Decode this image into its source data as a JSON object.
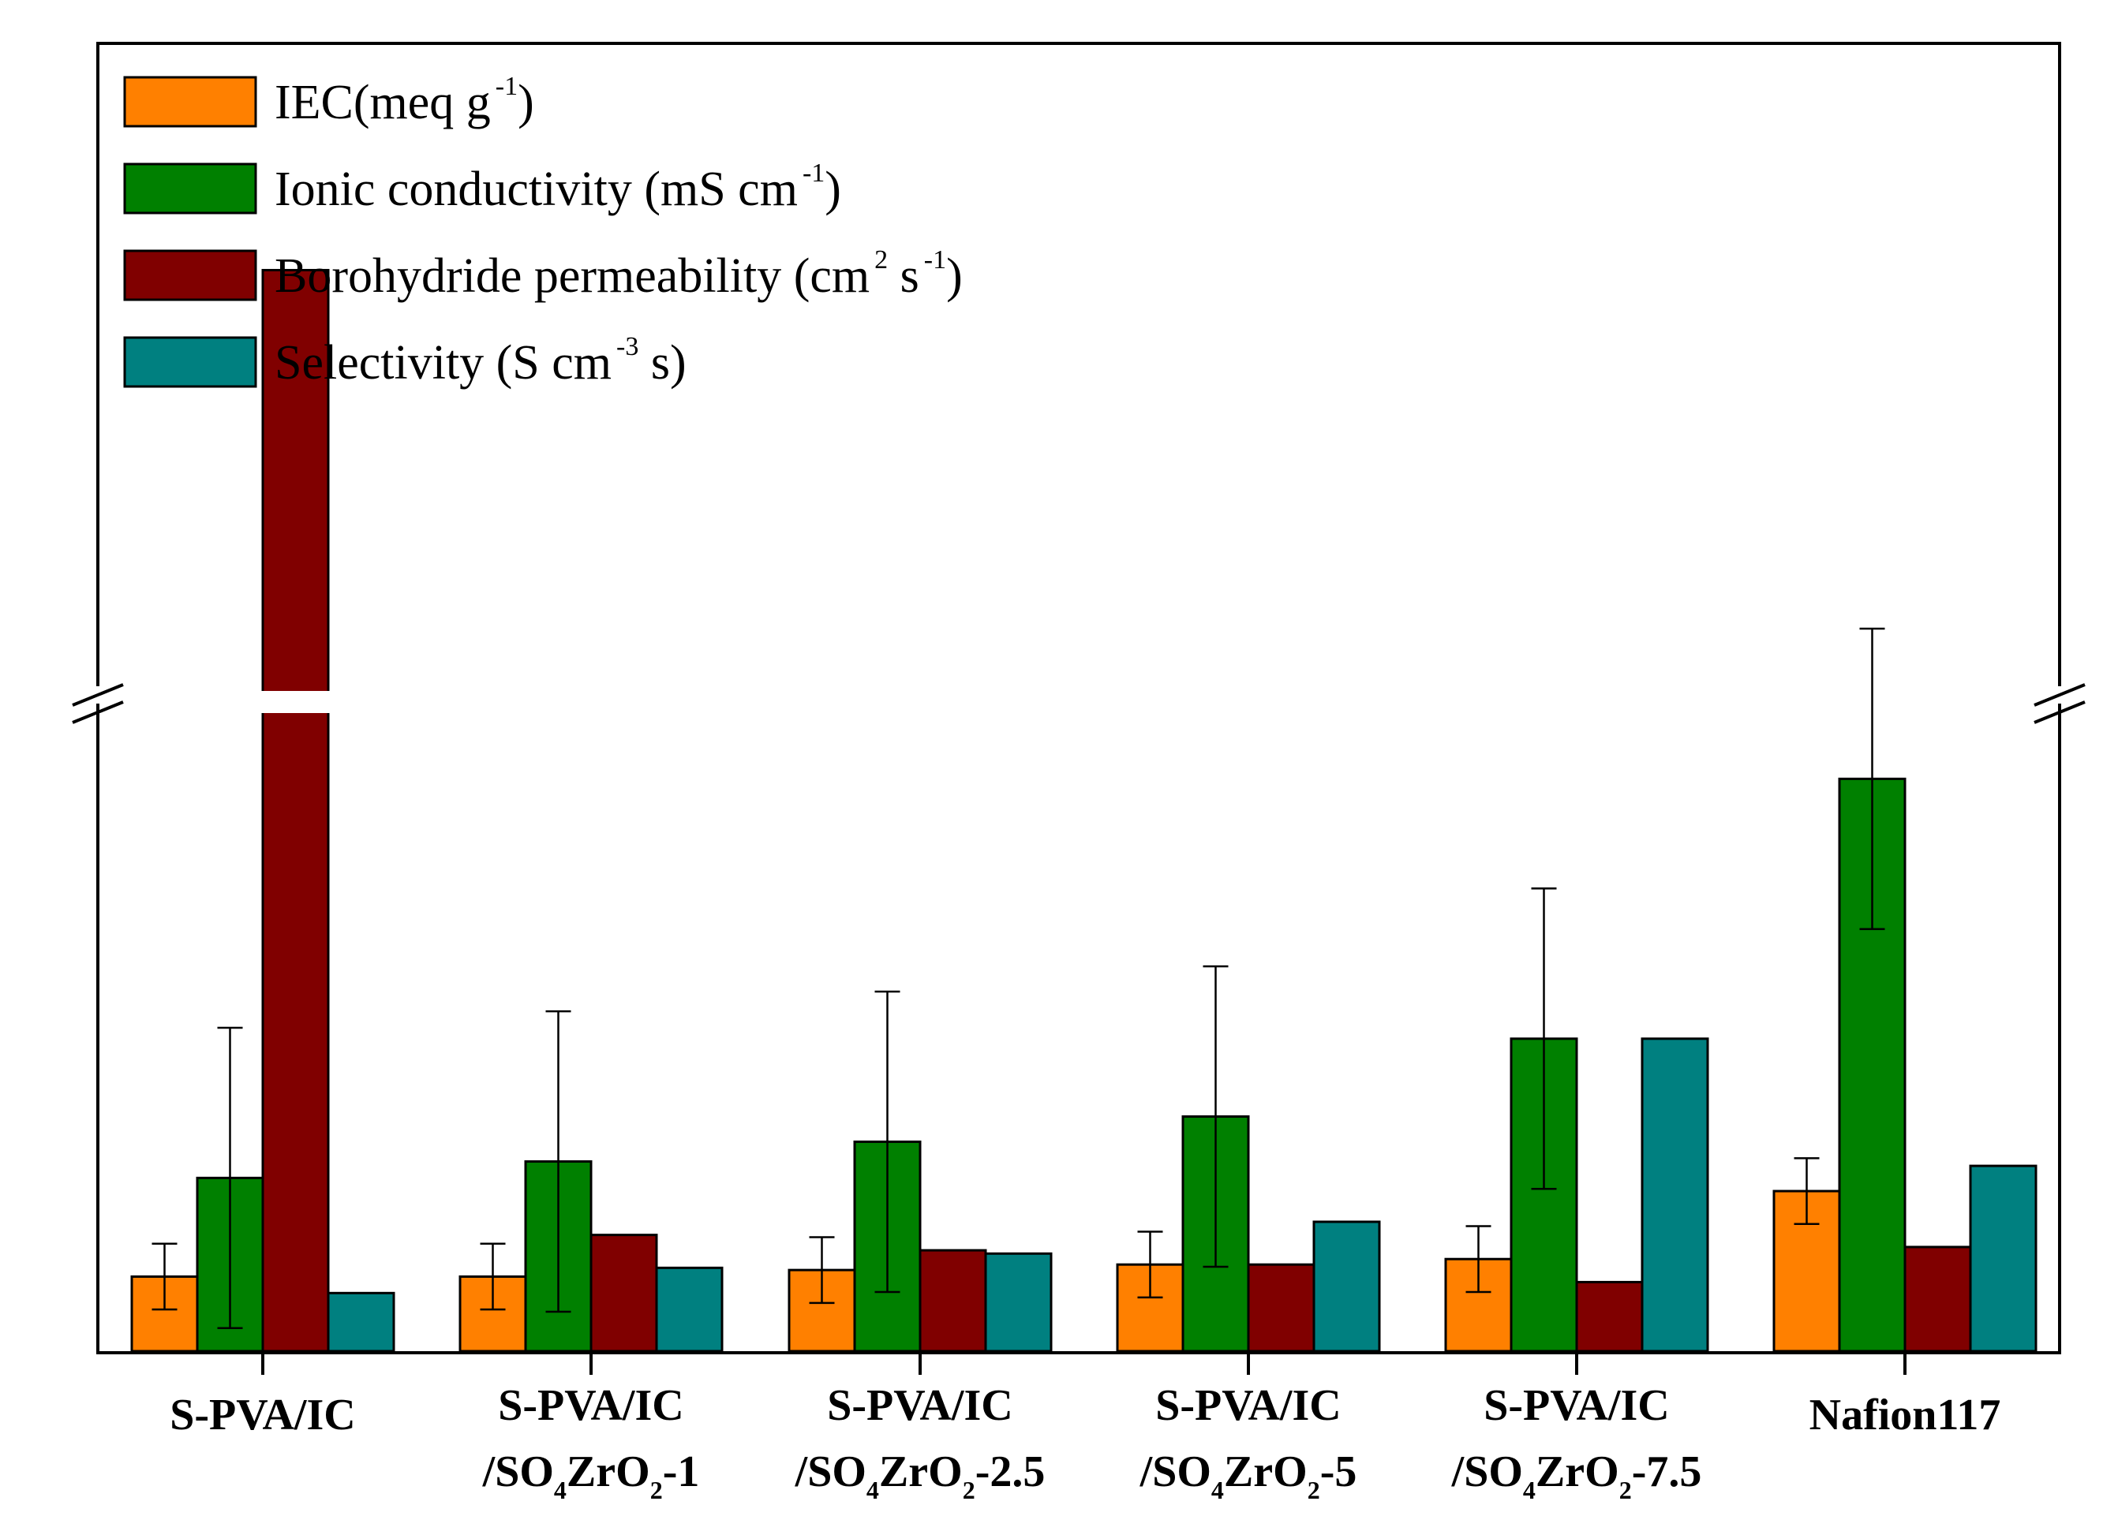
{
  "chart_data": {
    "type": "bar",
    "title": "",
    "xlabel": "",
    "ylabel": "",
    "ylim": [
      0,
      100
    ],
    "y_axis_ticks_shown": false,
    "y_axis_break": true,
    "note": "Values are relative bar heights (0-100 scale) read from the figure; the y axis has no tick labels and contains an axis break.",
    "categories": [
      {
        "line1": "S-PVA/IC",
        "line2": null
      },
      {
        "line1": "S-PVA/IC",
        "line2": {
          "pre": "/SO",
          "sub1": "4",
          "mid": "ZrO",
          "sub2": "2",
          "post": "-1"
        }
      },
      {
        "line1": "S-PVA/IC",
        "line2": {
          "pre": "/SO",
          "sub1": "4",
          "mid": "ZrO",
          "sub2": "2",
          "post": "-2.5"
        }
      },
      {
        "line1": "S-PVA/IC",
        "line2": {
          "pre": "/SO",
          "sub1": "4",
          "mid": "ZrO",
          "sub2": "2",
          "post": "-5"
        }
      },
      {
        "line1": "S-PVA/IC",
        "line2": {
          "pre": "/SO",
          "sub1": "4",
          "mid": "ZrO",
          "sub2": "2",
          "post": "-7.5"
        }
      },
      {
        "line1": "Nafion117",
        "line2": null
      }
    ],
    "series": [
      {
        "name": "IEC(meq g-1)",
        "legend": {
          "base": "IEC(meq g",
          "sup": "-1",
          "tail": ")"
        },
        "color": "#ff8000",
        "values": [
          6.8,
          6.8,
          7.4,
          7.9,
          8.4,
          14.6
        ],
        "errors": [
          3.0,
          3.0,
          3.0,
          3.0,
          3.0,
          3.0
        ]
      },
      {
        "name": "Ionic conductivity (mS cm-1)",
        "legend": {
          "base": "Ionic conductivity (mS cm",
          "sup": "-1",
          "tail": ")"
        },
        "color": "#008000",
        "values": [
          15.8,
          17.3,
          19.1,
          21.4,
          28.5,
          52.2
        ],
        "errors": [
          13.7,
          13.7,
          13.7,
          13.7,
          13.7,
          13.7
        ]
      },
      {
        "name": "Borohydride permeability (cm2 s-1)",
        "legend": {
          "base": "Borohydride permeability (cm",
          "sup": "2",
          "mid": " s",
          "sup2": "-1",
          "tail": ")"
        },
        "color": "#800000",
        "values": [
          98.6,
          10.6,
          9.2,
          7.9,
          6.3,
          9.5
        ],
        "errors": null
      },
      {
        "name": "Selectivity (S cm-3 s)",
        "legend": {
          "base": "Selectivity (S cm",
          "sup": "-3",
          "tail": " s)"
        },
        "color": "#008080",
        "values": [
          5.3,
          7.6,
          8.9,
          11.8,
          28.5,
          16.9
        ],
        "errors": null
      }
    ],
    "legend_position": "top-left",
    "grid": false
  }
}
